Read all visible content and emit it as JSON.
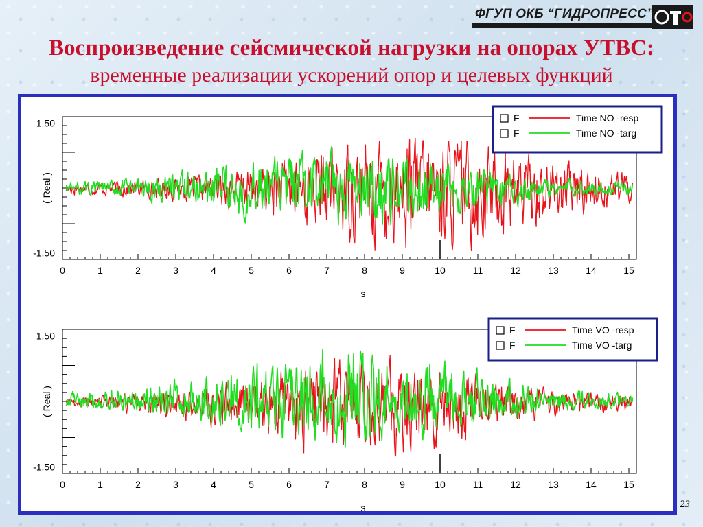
{
  "header": {
    "logo_text": "ФГУП ОКБ “ГИДРОПРЕСС”",
    "title": "Воспроизведение сейсмической нагрузки на опорах УТВС:",
    "subtitle": "временные реализации ускорений опор и целевых функций"
  },
  "page_number": "23",
  "colors": {
    "resp": "#e8141b",
    "targ": "#22dd22",
    "frame": "#2a2fc0",
    "title": "#c8102e"
  },
  "chart_data": [
    {
      "type": "line",
      "ylabel": "( Real )",
      "xlabel": "s",
      "xlim": [
        0,
        15.2
      ],
      "ylim": [
        -1.65,
        1.65
      ],
      "xticks": [
        "0",
        "1",
        "2",
        "3",
        "4",
        "5",
        "6",
        "7",
        "8",
        "9",
        "10",
        "11",
        "12",
        "13",
        "14",
        "15"
      ],
      "yticks": [
        "1.50",
        "-1.50"
      ],
      "legend_position": "top-right",
      "legend": [
        {
          "marker": "F",
          "label": "Time NO -resp"
        },
        {
          "marker": "F",
          "label": "Time NO -targ"
        }
      ],
      "series": [
        {
          "name": "Time NO -resp",
          "color": "#e8141b",
          "peak_max": 1.15,
          "peak_min": -1.45,
          "envelope_peak_s": 9.5
        },
        {
          "name": "Time NO -targ",
          "color": "#22dd22",
          "peak_max": 0.95,
          "peak_min": -0.85,
          "envelope_peak_s": 7.5
        }
      ]
    },
    {
      "type": "line",
      "ylabel": "( Real )",
      "xlabel": "s",
      "xlim": [
        0,
        15.2
      ],
      "ylim": [
        -1.65,
        1.65
      ],
      "xticks": [
        "0",
        "1",
        "2",
        "3",
        "4",
        "5",
        "6",
        "7",
        "8",
        "9",
        "10",
        "11",
        "12",
        "13",
        "14",
        "15"
      ],
      "yticks": [
        "1.50",
        "-1.50"
      ],
      "legend_position": "top-right",
      "legend": [
        {
          "marker": "F",
          "label": "Time VO -resp"
        },
        {
          "marker": "F",
          "label": "Time VO -targ"
        }
      ],
      "series": [
        {
          "name": "Time VO -resp",
          "color": "#e8141b",
          "peak_max": 1.05,
          "peak_min": -1.25,
          "envelope_peak_s": 8.0
        },
        {
          "name": "Time VO -targ",
          "color": "#22dd22",
          "peak_max": 1.2,
          "peak_min": -1.05,
          "envelope_peak_s": 7.5
        }
      ]
    }
  ]
}
